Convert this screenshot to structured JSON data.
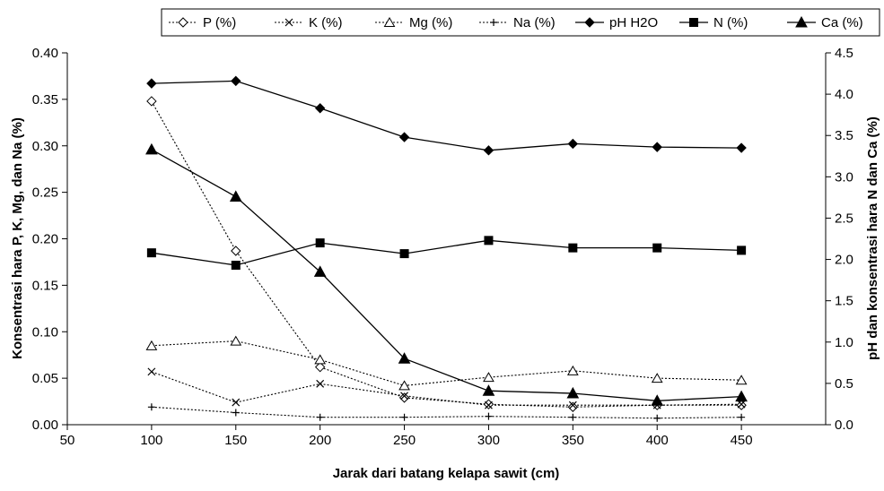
{
  "chart_data": {
    "type": "line",
    "title": "",
    "xlabel": "Jarak dari batang kelapa sawit (cm)",
    "ylabel_left": "Konsentrasi hara P, K, Mg, dan Na (%)",
    "ylabel_right": "pH dan konsentrasi hara N dan Ca (%)",
    "xlim": [
      50,
      500
    ],
    "ylim_left": [
      0,
      0.4
    ],
    "ylim_right": [
      0,
      4.5
    ],
    "x_ticks": [
      "50",
      "100",
      "150",
      "200",
      "250",
      "300",
      "350",
      "400",
      "450"
    ],
    "y_left_ticks": [
      "0.00",
      "0.05",
      "0.10",
      "0.15",
      "0.20",
      "0.25",
      "0.30",
      "0.35",
      "0.40"
    ],
    "y_right_ticks": [
      "0.0",
      "0.5",
      "1.0",
      "1.5",
      "2.0",
      "2.5",
      "3.0",
      "3.5",
      "4.0",
      "4.5"
    ],
    "grid": false,
    "legend_position": "top",
    "x": [
      100,
      150,
      200,
      250,
      300,
      350,
      400,
      450
    ],
    "series": [
      {
        "name": "P (%)",
        "axis": "left",
        "marker": "diamond-open",
        "line": "dotted",
        "values": [
          0.348,
          0.187,
          0.062,
          0.029,
          0.022,
          0.019,
          0.021,
          0.021
        ]
      },
      {
        "name": "K (%)",
        "axis": "left",
        "marker": "x",
        "line": "dotted",
        "values": [
          0.057,
          0.024,
          0.044,
          0.031,
          0.021,
          0.021,
          0.021,
          0.022
        ]
      },
      {
        "name": "Mg (%)",
        "axis": "left",
        "marker": "triangle-open",
        "line": "dotted",
        "values": [
          0.085,
          0.09,
          0.07,
          0.042,
          0.051,
          0.058,
          0.05,
          0.048
        ]
      },
      {
        "name": "Na (%)",
        "axis": "left",
        "marker": "plus",
        "line": "dotted",
        "values": [
          0.019,
          0.013,
          0.008,
          0.008,
          0.009,
          0.008,
          0.007,
          0.008
        ]
      },
      {
        "name": "pH H2O",
        "axis": "right",
        "marker": "diamond-filled",
        "line": "solid",
        "values": [
          4.13,
          4.16,
          3.83,
          3.48,
          3.32,
          3.4,
          3.36,
          3.35
        ]
      },
      {
        "name": "N (%)",
        "axis": "right",
        "marker": "square-filled",
        "line": "solid",
        "values": [
          2.08,
          1.93,
          2.2,
          2.07,
          2.23,
          2.14,
          2.14,
          2.11
        ]
      },
      {
        "name": "Ca (%)",
        "axis": "right",
        "marker": "triangle-filled",
        "line": "solid",
        "values": [
          3.33,
          2.76,
          1.85,
          0.8,
          0.41,
          0.38,
          0.29,
          0.34
        ]
      }
    ]
  }
}
